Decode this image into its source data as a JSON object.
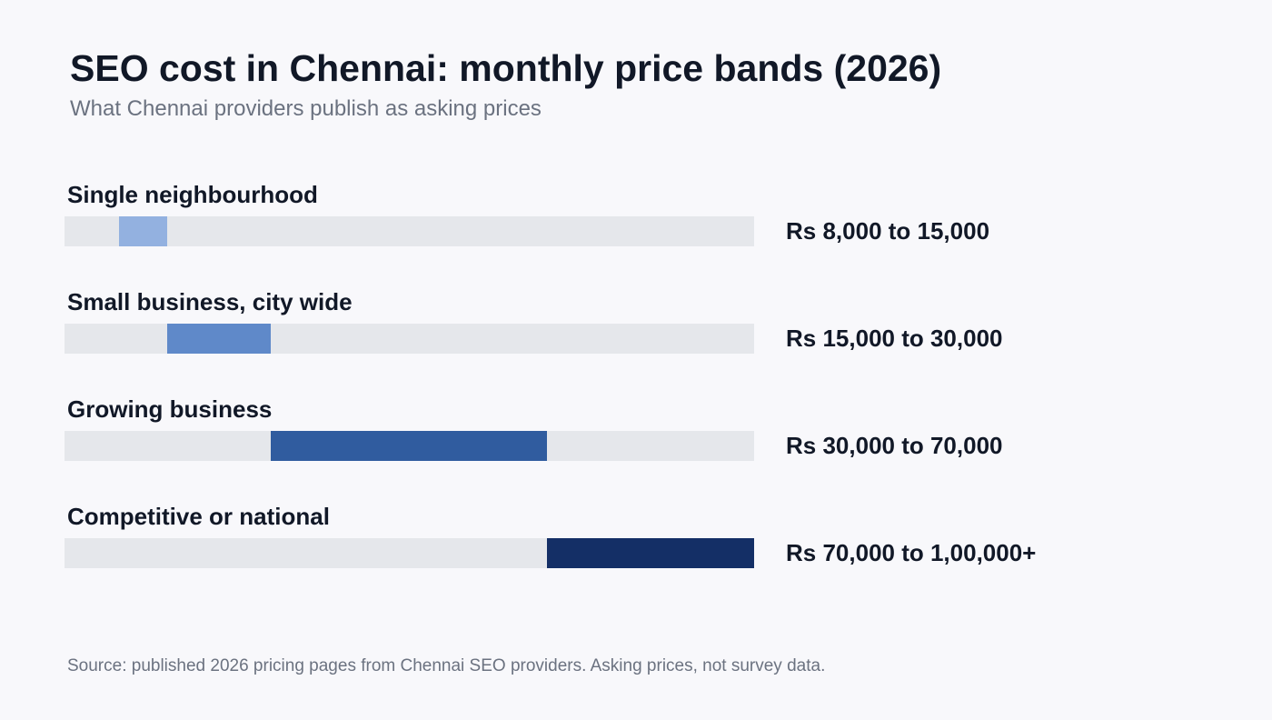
{
  "title": "SEO cost in Chennai: monthly price bands (2026)",
  "subtitle": "What Chennai providers publish as asking prices",
  "source": "Source: published 2026 pricing pages from Chennai SEO providers. Asking prices, not survey data.",
  "chart_data": {
    "type": "bar",
    "orientation": "horizontal",
    "style": "floating range bars on a shared track",
    "scale_segments": [
      {
        "from": 8000,
        "to": 15000
      },
      {
        "from": 15000,
        "to": 30000
      },
      {
        "from": 30000,
        "to": 70000
      },
      {
        "from": 70000,
        "to": 100000
      }
    ],
    "categories": [
      "Single neighbourhood",
      "Small business, city wide",
      "Growing business",
      "Competitive or national"
    ],
    "series": [
      {
        "values": [
          {
            "category": "Single neighbourhood",
            "low": 8000,
            "high": 15000,
            "label": "Rs 8,000 to 15,000",
            "color": "#93b1e0"
          },
          {
            "category": "Small business, city wide",
            "low": 15000,
            "high": 30000,
            "label": "Rs 15,000 to 30,000",
            "color": "#5f89c9"
          },
          {
            "category": "Growing business",
            "low": 30000,
            "high": 70000,
            "label": "Rs 30,000 to 70,000",
            "color": "#305c9f"
          },
          {
            "category": "Competitive or national",
            "low": 70000,
            "high": 100000,
            "label": "Rs 70,000 to 1,00,000+",
            "color": "#142f66"
          }
        ]
      }
    ],
    "track_color": "#e5e7eb"
  }
}
